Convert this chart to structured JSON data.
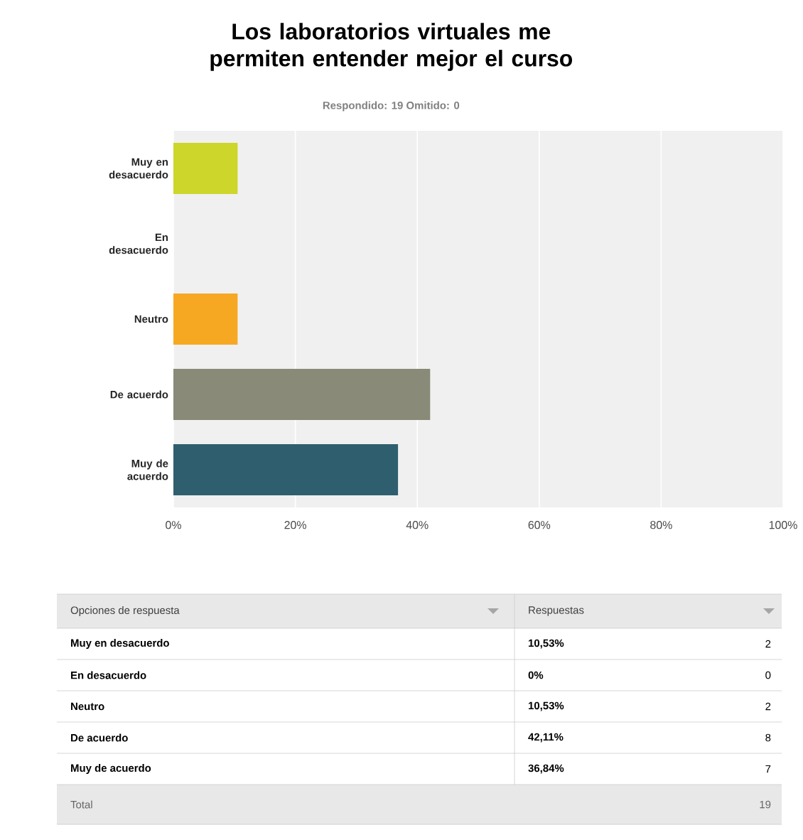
{
  "chart_data": [
    {
      "type": "bar",
      "orientation": "horizontal",
      "title": "Los laboratorios virtuales me permiten entender mejor el curso",
      "subtitle": "Respondido: 19   Omitido: 0",
      "categories": [
        "Muy en desacuerdo",
        "En desacuerdo",
        "Neutro",
        "De acuerdo",
        "Muy de acuerdo"
      ],
      "values": [
        10.53,
        0,
        10.53,
        42.11,
        36.84
      ],
      "colors": [
        "#cdd62a",
        "#c8c8c8",
        "#f7a823",
        "#8a8a78",
        "#2f5f6e"
      ],
      "xlim": [
        0,
        100
      ],
      "xticks": [
        {
          "value": 0,
          "label": "0%"
        },
        {
          "value": 20,
          "label": "20%"
        },
        {
          "value": 40,
          "label": "40%"
        },
        {
          "value": 60,
          "label": "60%"
        },
        {
          "value": 80,
          "label": "80%"
        },
        {
          "value": 100,
          "label": "100%"
        }
      ],
      "grid": "x"
    },
    {
      "type": "other",
      "categories": [
        "Muy en desacuerdo",
        "En desacuerdo",
        "Neutro",
        "De acuerdo",
        "Muy de acuerdo"
      ],
      "value_labels": [
        "10,53%",
        "0%",
        "10,53%",
        "42,11%",
        "36,84%"
      ],
      "annotations": [
        "Opciones de respuesta",
        "Respuestas",
        "2",
        "0",
        "2",
        "8",
        "7",
        "Total",
        "19"
      ]
    }
  ]
}
